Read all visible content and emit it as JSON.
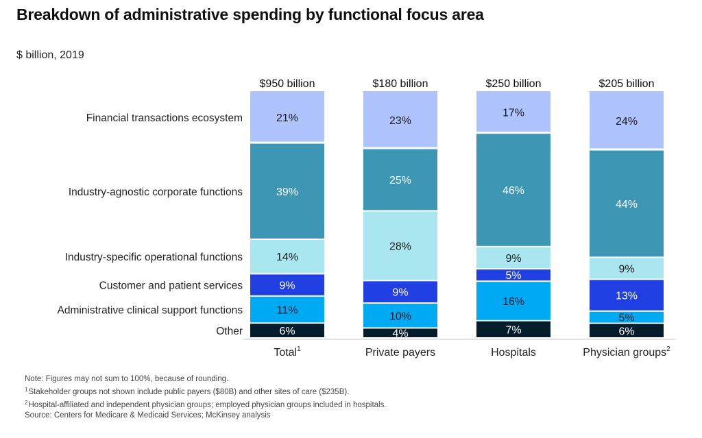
{
  "header": {
    "title": "Breakdown of administrative spending by functional focus area",
    "subtitle": "$ billion, 2019"
  },
  "chart_data": {
    "type": "bar",
    "stacked": true,
    "orientation": "vertical",
    "title": "Breakdown of administrative spending by functional focus area",
    "subtitle": "$ billion, 2019",
    "xlabel": "",
    "ylabel": "",
    "ylim": [
      0,
      100
    ],
    "unit": "%",
    "grid": false,
    "legend_placement": "left (row labels)",
    "categories": [
      {
        "label": "Total",
        "sup": "1",
        "total": "$950 billion"
      },
      {
        "label": "Private payers",
        "sup": "",
        "total": "$180 billion"
      },
      {
        "label": "Hospitals",
        "sup": "",
        "total": "$250 billion"
      },
      {
        "label": "Physician groups",
        "sup": "2",
        "total": "$205 billion"
      }
    ],
    "series": [
      {
        "name": "Other",
        "color": "#051c2c",
        "text_color": "#ffffff",
        "values": [
          6,
          4,
          7,
          6
        ]
      },
      {
        "name": "Administrative clinical support functions",
        "color": "#00a9f4",
        "text_color": "#0a1a2a",
        "values": [
          11,
          10,
          16,
          5
        ]
      },
      {
        "name": "Customer and patient services",
        "color": "#2140e3",
        "text_color": "#ffffff",
        "values": [
          9,
          9,
          5,
          13
        ]
      },
      {
        "name": "Industry-specific operational functions",
        "color": "#aae6f0",
        "text_color": "#1a1a1a",
        "values": [
          14,
          28,
          9,
          9
        ]
      },
      {
        "name": "Industry-agnostic corporate functions",
        "color": "#3c96b4",
        "text_color": "#ffffff",
        "values": [
          39,
          25,
          46,
          44
        ]
      },
      {
        "name": "Financial transactions ecosystem",
        "color": "#afc3ff",
        "text_color": "#1a1a1a",
        "values": [
          21,
          23,
          17,
          24
        ]
      }
    ]
  },
  "notes": {
    "note": "Note: Figures may not sum to 100%, because of rounding.",
    "footnote1_mark": "1",
    "footnote1": "Stakeholder groups not shown include public payers ($80B) and other sites of care ($235B).",
    "footnote2_mark": "2",
    "footnote2": "Hospital-affiliated and independent physician groups; employed physician groups included in hospitals.",
    "source": "Source: Centers for Medicare & Medicaid Services; McKinsey analysis"
  }
}
